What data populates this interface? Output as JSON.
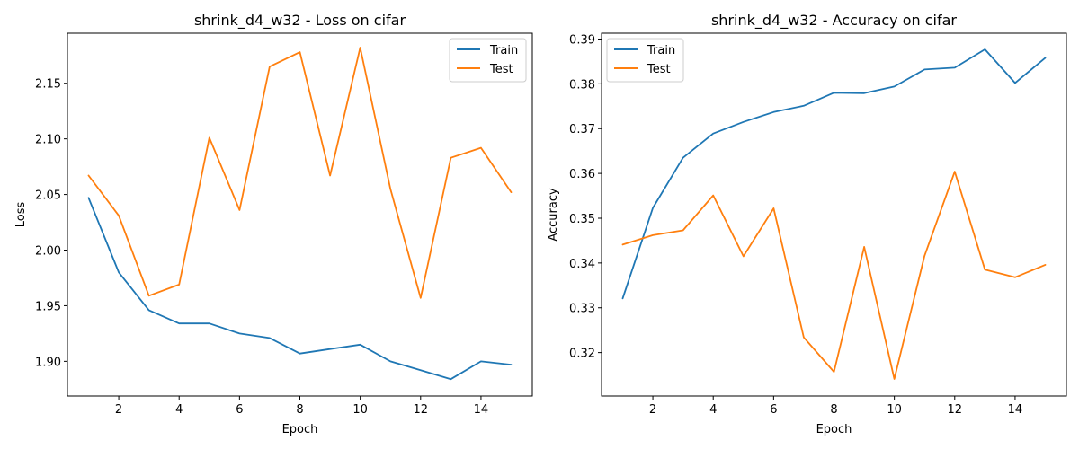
{
  "chart_data": [
    {
      "type": "line",
      "title": "shrink_d4_w32 - Loss on cifar",
      "xlabel": "Epoch",
      "ylabel": "Loss",
      "x": [
        1,
        2,
        3,
        4,
        5,
        6,
        7,
        8,
        9,
        10,
        11,
        12,
        13,
        14,
        15
      ],
      "xlim": [
        0.3,
        15.7
      ],
      "ylim": [
        1.8688,
        2.195
      ],
      "xticks": [
        2,
        4,
        6,
        8,
        10,
        12,
        14
      ],
      "yticks": [
        1.9,
        1.95,
        2.0,
        2.05,
        2.1,
        2.15
      ],
      "ytick_labels": [
        "1.90",
        "1.95",
        "2.00",
        "2.05",
        "2.10",
        "2.15"
      ],
      "grid": false,
      "legend_position": "top-right",
      "series": [
        {
          "name": "Train",
          "color": "#1f77b4",
          "values": [
            2.047,
            1.98,
            1.946,
            1.934,
            1.934,
            1.925,
            1.921,
            1.907,
            1.911,
            1.915,
            1.9,
            1.892,
            1.884,
            1.9,
            1.897
          ]
        },
        {
          "name": "Test",
          "color": "#ff7f0e",
          "values": [
            2.067,
            2.031,
            1.959,
            1.969,
            2.101,
            2.036,
            2.165,
            2.178,
            2.067,
            2.182,
            2.055,
            1.957,
            2.083,
            2.092,
            2.052
          ]
        }
      ]
    },
    {
      "type": "line",
      "title": "shrink_d4_w32 - Accuracy on cifar",
      "xlabel": "Epoch",
      "ylabel": "Accuracy",
      "x": [
        1,
        2,
        3,
        4,
        5,
        6,
        7,
        8,
        9,
        10,
        11,
        12,
        13,
        14,
        15
      ],
      "xlim": [
        0.3,
        15.7
      ],
      "ylim": [
        0.3103,
        0.3913
      ],
      "xticks": [
        2,
        4,
        6,
        8,
        10,
        12,
        14
      ],
      "yticks": [
        0.32,
        0.33,
        0.34,
        0.35,
        0.36,
        0.37,
        0.38,
        0.39
      ],
      "ytick_labels": [
        "0.32",
        "0.33",
        "0.34",
        "0.35",
        "0.36",
        "0.37",
        "0.38",
        "0.39"
      ],
      "grid": false,
      "legend_position": "top-left",
      "series": [
        {
          "name": "Train",
          "color": "#1f77b4",
          "values": [
            0.3321,
            0.3523,
            0.3635,
            0.3689,
            0.3715,
            0.3737,
            0.3751,
            0.378,
            0.3779,
            0.3794,
            0.3832,
            0.3836,
            0.3877,
            0.3802,
            0.3858
          ]
        },
        {
          "name": "Test",
          "color": "#ff7f0e",
          "values": [
            0.3441,
            0.3462,
            0.3473,
            0.3551,
            0.3415,
            0.3522,
            0.3234,
            0.3157,
            0.3436,
            0.3141,
            0.3416,
            0.3604,
            0.3385,
            0.3368,
            0.3396
          ]
        }
      ]
    }
  ]
}
